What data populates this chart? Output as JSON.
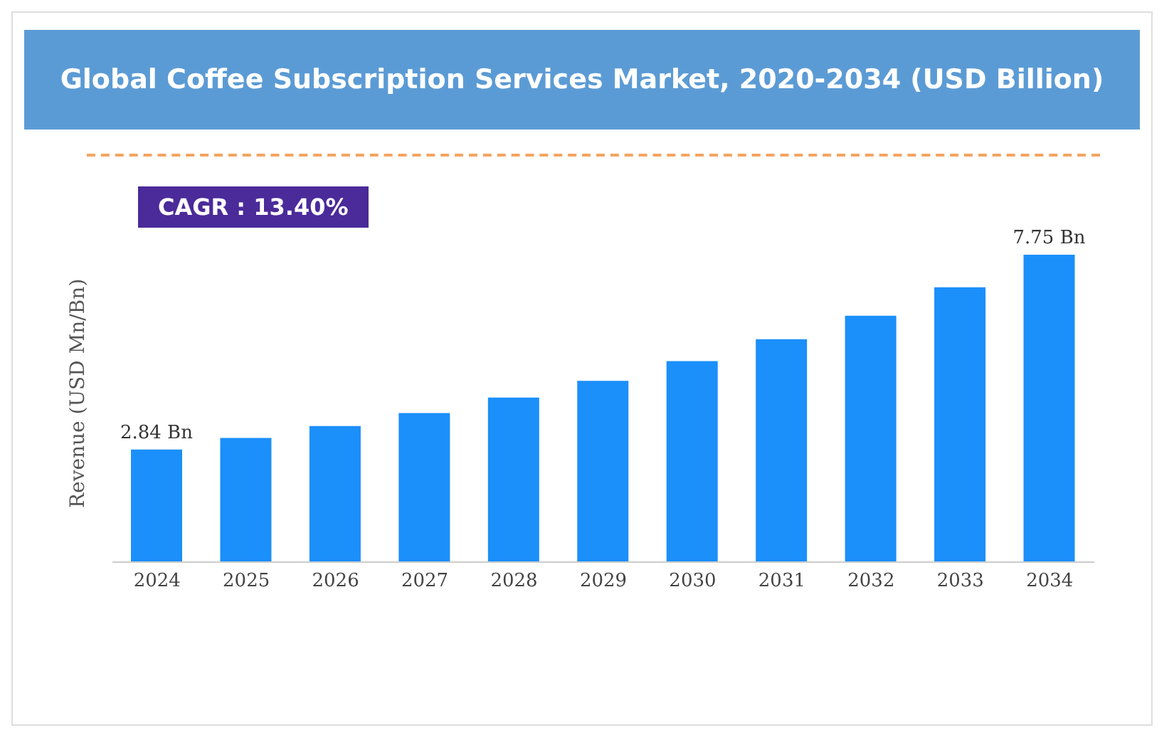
{
  "chart_data": {
    "type": "bar",
    "title": "Global Coffee Subscription Services Market, 2020-2034 (USD Billion)",
    "ylabel": "Revenue (USD Mn/Bn)",
    "annotations": [
      "CAGR : 13.40%"
    ],
    "categories": [
      "2024",
      "2025",
      "2026",
      "2027",
      "2028",
      "2029",
      "2030",
      "2031",
      "2032",
      "2033",
      "2034"
    ],
    "values": [
      2.84,
      3.13,
      3.43,
      3.76,
      4.15,
      4.57,
      5.07,
      5.62,
      6.21,
      6.93,
      7.75
    ],
    "value_labels": [
      "2.84 Bn",
      null,
      null,
      null,
      null,
      null,
      null,
      null,
      null,
      null,
      "7.75 Bn"
    ],
    "color": "#1b8ffa",
    "tick_labels": "x",
    "grid": false,
    "legend": false
  }
}
